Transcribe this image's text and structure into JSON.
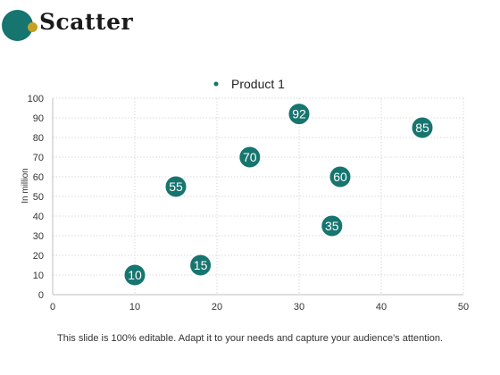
{
  "slide": {
    "title": "Scatter",
    "footer": "This slide is 100% editable. Adapt it to your needs and capture your audience's attention."
  },
  "colors": {
    "accent": "#17756f",
    "logo_accent": "#c4a226",
    "grid": "#d9d9d9",
    "axis_text": "#333333"
  },
  "chart_data": {
    "type": "scatter",
    "title": "",
    "xlabel": "",
    "ylabel": "In million",
    "xlim": [
      0,
      50
    ],
    "ylim": [
      0,
      100
    ],
    "x_ticks": [
      0,
      10,
      20,
      30,
      40,
      50
    ],
    "y_ticks": [
      0,
      10,
      20,
      30,
      40,
      50,
      60,
      70,
      80,
      90,
      100
    ],
    "grid": "dotted",
    "legend_position": "top-center",
    "series": [
      {
        "name": "Product 1",
        "color": "#17756f",
        "points": [
          {
            "x": 10,
            "y": 10,
            "label": "10"
          },
          {
            "x": 18,
            "y": 15,
            "label": "15"
          },
          {
            "x": 15,
            "y": 55,
            "label": "55"
          },
          {
            "x": 24,
            "y": 70,
            "label": "70"
          },
          {
            "x": 30,
            "y": 92,
            "label": "92"
          },
          {
            "x": 34,
            "y": 35,
            "label": "35"
          },
          {
            "x": 35,
            "y": 60,
            "label": "60"
          },
          {
            "x": 45,
            "y": 85,
            "label": "85"
          }
        ]
      }
    ]
  }
}
